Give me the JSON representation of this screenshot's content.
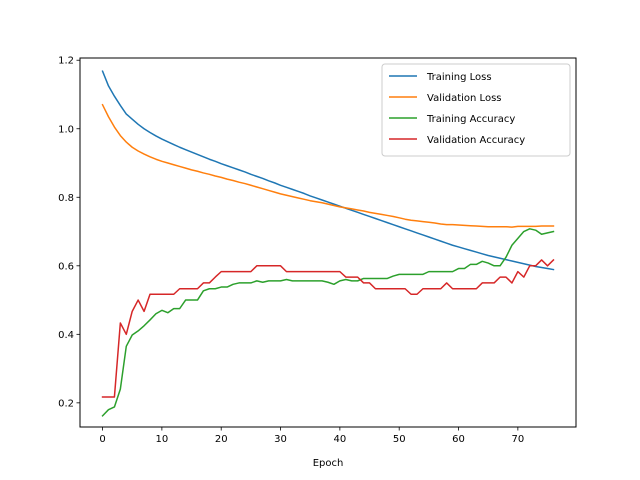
{
  "chart_data": {
    "type": "line",
    "title": "",
    "xlabel": "Epoch",
    "ylabel": "",
    "xlim": [
      -3.8,
      79.8
    ],
    "ylim": [
      0.1295,
      1.2065
    ],
    "xticks": [
      0,
      10,
      20,
      30,
      40,
      50,
      60,
      70
    ],
    "yticks": [
      0.2,
      0.4,
      0.6,
      0.8,
      1.0,
      1.2
    ],
    "ytick_labels": [
      "0.2",
      "0.4",
      "0.6",
      "0.8",
      "1.0",
      "1.2"
    ],
    "grid": false,
    "legend_position": "upper right",
    "x": [
      0,
      1,
      2,
      3,
      4,
      5,
      6,
      7,
      8,
      9,
      10,
      11,
      12,
      13,
      14,
      15,
      16,
      17,
      18,
      19,
      20,
      21,
      22,
      23,
      24,
      25,
      26,
      27,
      28,
      29,
      30,
      31,
      32,
      33,
      34,
      35,
      36,
      37,
      38,
      39,
      40,
      41,
      42,
      43,
      44,
      45,
      46,
      47,
      48,
      49,
      50,
      51,
      52,
      53,
      54,
      55,
      56,
      57,
      58,
      59,
      60,
      61,
      62,
      63,
      64,
      65,
      66,
      67,
      68,
      69,
      70,
      71,
      72,
      73,
      74,
      75,
      76
    ],
    "series": [
      {
        "name": "Training Loss",
        "color": "#1f77b4",
        "values": [
          1.168,
          1.125,
          1.095,
          1.068,
          1.043,
          1.028,
          1.013,
          1.0,
          0.989,
          0.979,
          0.97,
          0.962,
          0.954,
          0.946,
          0.939,
          0.932,
          0.925,
          0.918,
          0.911,
          0.905,
          0.898,
          0.892,
          0.886,
          0.88,
          0.874,
          0.867,
          0.861,
          0.855,
          0.848,
          0.842,
          0.835,
          0.829,
          0.823,
          0.817,
          0.811,
          0.804,
          0.798,
          0.792,
          0.786,
          0.78,
          0.774,
          0.768,
          0.762,
          0.756,
          0.75,
          0.744,
          0.738,
          0.732,
          0.726,
          0.72,
          0.714,
          0.708,
          0.702,
          0.696,
          0.69,
          0.684,
          0.678,
          0.672,
          0.666,
          0.66,
          0.655,
          0.65,
          0.645,
          0.64,
          0.635,
          0.63,
          0.626,
          0.622,
          0.618,
          0.614,
          0.61,
          0.606,
          0.602,
          0.598,
          0.595,
          0.592,
          0.589
        ]
      },
      {
        "name": "Validation Loss",
        "color": "#ff7f0e",
        "values": [
          1.07,
          1.035,
          1.005,
          0.98,
          0.961,
          0.946,
          0.935,
          0.926,
          0.918,
          0.911,
          0.905,
          0.9,
          0.895,
          0.89,
          0.885,
          0.88,
          0.876,
          0.871,
          0.867,
          0.862,
          0.858,
          0.853,
          0.849,
          0.844,
          0.84,
          0.835,
          0.83,
          0.825,
          0.82,
          0.815,
          0.81,
          0.806,
          0.802,
          0.798,
          0.794,
          0.79,
          0.787,
          0.784,
          0.78,
          0.776,
          0.772,
          0.769,
          0.766,
          0.763,
          0.76,
          0.756,
          0.753,
          0.75,
          0.747,
          0.744,
          0.74,
          0.736,
          0.733,
          0.731,
          0.729,
          0.727,
          0.725,
          0.722,
          0.72,
          0.72,
          0.719,
          0.718,
          0.717,
          0.716,
          0.715,
          0.714,
          0.714,
          0.714,
          0.714,
          0.713,
          0.715,
          0.715,
          0.715,
          0.715,
          0.716,
          0.716,
          0.716
        ]
      },
      {
        "name": "Training Accuracy",
        "color": "#2ca02c",
        "values": [
          0.162,
          0.18,
          0.188,
          0.24,
          0.365,
          0.398,
          0.41,
          0.425,
          0.442,
          0.46,
          0.47,
          0.463,
          0.475,
          0.475,
          0.5,
          0.5,
          0.5,
          0.527,
          0.533,
          0.533,
          0.538,
          0.538,
          0.546,
          0.55,
          0.55,
          0.55,
          0.556,
          0.552,
          0.556,
          0.556,
          0.556,
          0.56,
          0.556,
          0.556,
          0.556,
          0.556,
          0.556,
          0.556,
          0.552,
          0.546,
          0.556,
          0.56,
          0.556,
          0.556,
          0.563,
          0.563,
          0.563,
          0.563,
          0.563,
          0.57,
          0.575,
          0.575,
          0.575,
          0.575,
          0.575,
          0.583,
          0.583,
          0.583,
          0.583,
          0.583,
          0.592,
          0.592,
          0.604,
          0.604,
          0.613,
          0.608,
          0.6,
          0.6,
          0.625,
          0.66,
          0.68,
          0.7,
          0.708,
          0.704,
          0.692,
          0.696,
          0.7
        ]
      },
      {
        "name": "Validation Accuracy",
        "color": "#d62728",
        "values": [
          0.217,
          0.217,
          0.217,
          0.433,
          0.4,
          0.467,
          0.5,
          0.467,
          0.517,
          0.517,
          0.517,
          0.517,
          0.517,
          0.533,
          0.533,
          0.533,
          0.533,
          0.55,
          0.55,
          0.567,
          0.583,
          0.583,
          0.583,
          0.583,
          0.583,
          0.583,
          0.6,
          0.6,
          0.6,
          0.6,
          0.6,
          0.583,
          0.583,
          0.583,
          0.583,
          0.583,
          0.583,
          0.583,
          0.583,
          0.583,
          0.583,
          0.567,
          0.567,
          0.567,
          0.55,
          0.55,
          0.533,
          0.533,
          0.533,
          0.533,
          0.533,
          0.533,
          0.517,
          0.517,
          0.533,
          0.533,
          0.533,
          0.533,
          0.55,
          0.533,
          0.533,
          0.533,
          0.533,
          0.533,
          0.55,
          0.55,
          0.55,
          0.567,
          0.567,
          0.55,
          0.583,
          0.567,
          0.6,
          0.6,
          0.617,
          0.6,
          0.617
        ]
      }
    ]
  }
}
